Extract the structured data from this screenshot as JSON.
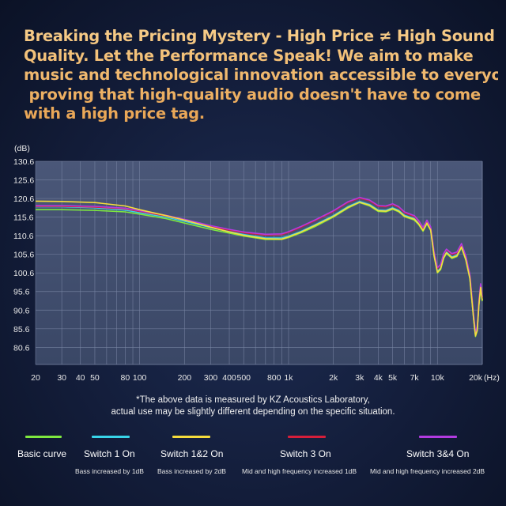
{
  "headline": {
    "lines": [
      "Breaking the Pricing Mystery - High Price ≠ High Sound",
      "Quality. Let the Performance Speak! We aim to make",
      "music and technological innovation accessible to everyone,",
      " proving that high-quality audio doesn't have to come",
      "with a high price tag."
    ]
  },
  "chart_data": {
    "type": "line",
    "ylabel": "(dB)",
    "xlabel": "(Hz)",
    "xscale": "log",
    "xlim": [
      20,
      20000
    ],
    "ylim": [
      76,
      130.6
    ],
    "yticks": [
      "130.6",
      "125.6",
      "120.6",
      "115.6",
      "110.6",
      "105.6",
      "100.6",
      "95.6",
      "90.6",
      "85.6",
      "80.6"
    ],
    "ytick_values": [
      130.6,
      125.6,
      120.6,
      115.6,
      110.6,
      105.6,
      100.6,
      95.6,
      90.6,
      85.6,
      80.6
    ],
    "xticks": [
      "20",
      "30",
      "40",
      "50",
      "80",
      "100",
      "200",
      "300",
      "400",
      "500",
      "800",
      "1k",
      "2k",
      "3k",
      "4k",
      "5k",
      "7k",
      "10k",
      "20k"
    ],
    "xtick_values": [
      20,
      30,
      40,
      50,
      80,
      100,
      200,
      300,
      400,
      500,
      800,
      1000,
      2000,
      3000,
      4000,
      5000,
      7000,
      10000,
      20000
    ],
    "grid": true,
    "series": [
      {
        "name": "Basic curve",
        "color": "#7ee83f",
        "points": [
          [
            20,
            117.6
          ],
          [
            30,
            117.6
          ],
          [
            50,
            117.4
          ],
          [
            80,
            117
          ],
          [
            100,
            116.4
          ],
          [
            150,
            115.2
          ],
          [
            200,
            114
          ],
          [
            300,
            112.3
          ],
          [
            400,
            111.3
          ],
          [
            500,
            110.5
          ],
          [
            700,
            109.6
          ],
          [
            900,
            109.6
          ],
          [
            1000,
            110.1
          ],
          [
            1200,
            111.3
          ],
          [
            1500,
            113
          ],
          [
            2000,
            115.6
          ],
          [
            2500,
            118
          ],
          [
            3000,
            119.5
          ],
          [
            3500,
            118.6
          ],
          [
            4000,
            117.1
          ],
          [
            4500,
            117
          ],
          [
            5000,
            117.7
          ],
          [
            5500,
            117
          ],
          [
            6000,
            115.7
          ],
          [
            7000,
            114.8
          ],
          [
            7500,
            113.5
          ],
          [
            8000,
            111.8
          ],
          [
            8500,
            113.8
          ],
          [
            9000,
            112
          ],
          [
            9500,
            105
          ],
          [
            10000,
            100.6
          ],
          [
            10500,
            101.5
          ],
          [
            11000,
            104.5
          ],
          [
            11500,
            105.8
          ],
          [
            12500,
            104.5
          ],
          [
            13500,
            105
          ],
          [
            14500,
            107.4
          ],
          [
            15500,
            104
          ],
          [
            16500,
            99
          ],
          [
            17500,
            88
          ],
          [
            18000,
            83.5
          ],
          [
            18500,
            85
          ],
          [
            19000,
            92
          ],
          [
            19500,
            96.5
          ],
          [
            20000,
            93
          ]
        ]
      },
      {
        "name": "Switch 1 On",
        "color": "#38d4e8",
        "points": [
          [
            20,
            118.4
          ],
          [
            30,
            118.4
          ],
          [
            50,
            118.1
          ],
          [
            80,
            117.5
          ],
          [
            100,
            116.8
          ],
          [
            150,
            115.6
          ],
          [
            200,
            114.5
          ],
          [
            300,
            112.8
          ],
          [
            400,
            111.7
          ],
          [
            500,
            110.9
          ],
          [
            700,
            110
          ],
          [
            900,
            110
          ],
          [
            1000,
            110.5
          ],
          [
            1200,
            111.7
          ],
          [
            1500,
            113.5
          ],
          [
            2000,
            116
          ],
          [
            2500,
            118.4
          ],
          [
            3000,
            119.8
          ],
          [
            3500,
            119
          ],
          [
            4000,
            117.5
          ],
          [
            4500,
            117.4
          ],
          [
            5000,
            118.1
          ],
          [
            5500,
            117.4
          ],
          [
            6000,
            116.1
          ],
          [
            7000,
            115.2
          ],
          [
            7500,
            113.9
          ],
          [
            8000,
            112.2
          ],
          [
            8500,
            114.2
          ],
          [
            9000,
            112.4
          ],
          [
            9500,
            105.4
          ],
          [
            10000,
            101
          ],
          [
            10500,
            101.9
          ],
          [
            11000,
            104.9
          ],
          [
            11500,
            106.2
          ],
          [
            12500,
            104.9
          ],
          [
            13500,
            105.4
          ],
          [
            14500,
            107.8
          ],
          [
            15500,
            104.4
          ],
          [
            16500,
            99.4
          ],
          [
            17500,
            88.4
          ],
          [
            18000,
            83.9
          ],
          [
            18500,
            85.4
          ],
          [
            19000,
            92.4
          ],
          [
            19500,
            96.9
          ],
          [
            20000,
            93.4
          ]
        ]
      },
      {
        "name": "Switch 1&2 On",
        "color": "#f6dc3c",
        "points": [
          [
            20,
            119.9
          ],
          [
            30,
            119.8
          ],
          [
            50,
            119.5
          ],
          [
            80,
            118.6
          ],
          [
            100,
            117.6
          ],
          [
            150,
            116
          ],
          [
            200,
            114.8
          ],
          [
            300,
            112.9
          ],
          [
            400,
            111.6
          ],
          [
            500,
            110.7
          ],
          [
            700,
            109.8
          ],
          [
            900,
            109.7
          ],
          [
            1000,
            110.3
          ],
          [
            1200,
            111.5
          ],
          [
            1500,
            113.3
          ],
          [
            2000,
            115.8
          ],
          [
            2500,
            118.2
          ],
          [
            3000,
            119.6
          ],
          [
            3500,
            118.8
          ],
          [
            4000,
            117.3
          ],
          [
            4500,
            117.2
          ],
          [
            5000,
            117.9
          ],
          [
            5500,
            117.2
          ],
          [
            6000,
            115.9
          ],
          [
            7000,
            115
          ],
          [
            7500,
            113.7
          ],
          [
            8000,
            112
          ],
          [
            8500,
            114
          ],
          [
            9000,
            112.2
          ],
          [
            9500,
            105.2
          ],
          [
            10000,
            100.8
          ],
          [
            10500,
            101.7
          ],
          [
            11000,
            104.7
          ],
          [
            11500,
            106
          ],
          [
            12500,
            104.7
          ],
          [
            13500,
            105.2
          ],
          [
            14500,
            107.6
          ],
          [
            15500,
            104.2
          ],
          [
            16500,
            99.2
          ],
          [
            17500,
            88.2
          ],
          [
            18000,
            83.7
          ],
          [
            18500,
            85.2
          ],
          [
            19000,
            92.2
          ],
          [
            19500,
            96.7
          ],
          [
            20000,
            93.2
          ]
        ]
      },
      {
        "name": "Switch 3 On",
        "color": "#d61e3a",
        "points": [
          [
            20,
            118.5
          ],
          [
            30,
            118.5
          ],
          [
            50,
            118.3
          ],
          [
            80,
            117.8
          ],
          [
            100,
            117.1
          ],
          [
            150,
            115.9
          ],
          [
            200,
            114.8
          ],
          [
            300,
            113.1
          ],
          [
            400,
            112.1
          ],
          [
            500,
            111.4
          ],
          [
            700,
            110.8
          ],
          [
            900,
            110.9
          ],
          [
            1000,
            111.5
          ],
          [
            1200,
            112.8
          ],
          [
            1500,
            114.6
          ],
          [
            2000,
            117.1
          ],
          [
            2500,
            119.5
          ],
          [
            3000,
            120.7
          ],
          [
            3500,
            120
          ],
          [
            4000,
            118.5
          ],
          [
            4500,
            118.4
          ],
          [
            5000,
            119
          ],
          [
            5500,
            118.2
          ],
          [
            6000,
            116.8
          ],
          [
            7000,
            115.8
          ],
          [
            7500,
            114.4
          ],
          [
            8000,
            112.6
          ],
          [
            8500,
            114.6
          ],
          [
            9000,
            112.8
          ],
          [
            9500,
            106
          ],
          [
            10000,
            101.8
          ],
          [
            10500,
            102.7
          ],
          [
            11000,
            105.6
          ],
          [
            11500,
            106.8
          ],
          [
            12500,
            105.6
          ],
          [
            13500,
            106
          ],
          [
            14500,
            108.3
          ],
          [
            15500,
            105
          ],
          [
            16500,
            100
          ],
          [
            17500,
            89
          ],
          [
            18000,
            84.5
          ],
          [
            18500,
            86
          ],
          [
            19000,
            93
          ],
          [
            19500,
            97.5
          ],
          [
            20000,
            94
          ]
        ]
      },
      {
        "name": "Switch 3&4 On",
        "color": "#b23be0",
        "points": [
          [
            20,
            118.7
          ],
          [
            30,
            118.7
          ],
          [
            50,
            118.5
          ],
          [
            80,
            118
          ],
          [
            100,
            117.3
          ],
          [
            150,
            116.1
          ],
          [
            200,
            115
          ],
          [
            300,
            113.3
          ],
          [
            400,
            112.3
          ],
          [
            500,
            111.6
          ],
          [
            700,
            111
          ],
          [
            900,
            111.1
          ],
          [
            1000,
            111.7
          ],
          [
            1200,
            113
          ],
          [
            1500,
            114.8
          ],
          [
            2000,
            117.3
          ],
          [
            2500,
            119.7
          ],
          [
            3000,
            120.9
          ],
          [
            3500,
            120.2
          ],
          [
            4000,
            118.7
          ],
          [
            4500,
            118.6
          ],
          [
            5000,
            119.2
          ],
          [
            5500,
            118.4
          ],
          [
            6000,
            117
          ],
          [
            7000,
            116
          ],
          [
            7500,
            114.6
          ],
          [
            8000,
            112.8
          ],
          [
            8500,
            114.8
          ],
          [
            9000,
            113
          ],
          [
            9500,
            106.2
          ],
          [
            10000,
            102
          ],
          [
            10500,
            102.9
          ],
          [
            11000,
            105.8
          ],
          [
            11500,
            107
          ],
          [
            12500,
            105.8
          ],
          [
            13500,
            106.2
          ],
          [
            14500,
            108.5
          ],
          [
            15500,
            105.2
          ],
          [
            16500,
            100.2
          ],
          [
            17500,
            89.2
          ],
          [
            18000,
            84.7
          ],
          [
            18500,
            86.2
          ],
          [
            19000,
            93.2
          ],
          [
            19500,
            97.7
          ],
          [
            20000,
            94.2
          ]
        ]
      }
    ]
  },
  "note": {
    "line1": "*The above data is measured by KZ Acoustics Laboratory,",
    "line2": "actual use may be slightly different depending on the specific situation."
  },
  "legend": [
    {
      "label": "Basic curve",
      "sub": "",
      "color": "#7ee83f"
    },
    {
      "label": "Switch 1 On",
      "sub": "Bass increased by 1dB",
      "color": "#38d4e8"
    },
    {
      "label": "Switch 1&2 On",
      "sub": "Bass increased by 2dB",
      "color": "#f6dc3c"
    },
    {
      "label": "Switch 3 On",
      "sub": "Mid and high frequency increased 1dB",
      "color": "#d61e3a"
    },
    {
      "label": "Switch 3&4 On",
      "sub": "Mid and high frequency increased 2dB",
      "color": "#b23be0"
    }
  ]
}
